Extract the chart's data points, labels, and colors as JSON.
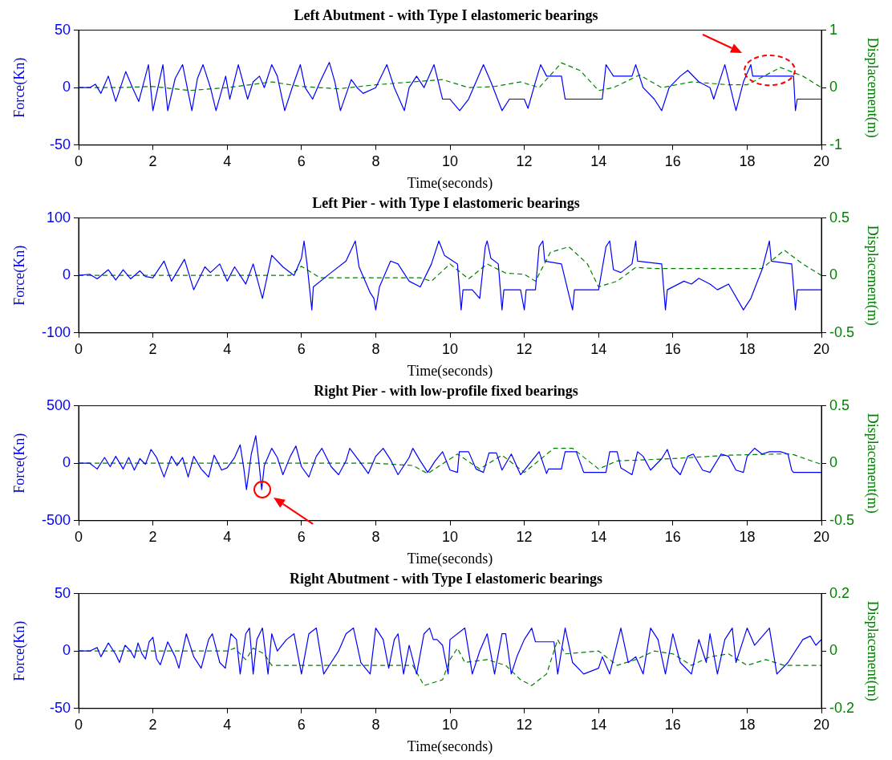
{
  "chart_data": [
    {
      "type": "line",
      "title": "Left Abutment - with Type I elastomeric bearings",
      "xlabel": "Time(seconds)",
      "ylabel": "Force(Kn)",
      "y2label": "Displacement(m)",
      "xlim": [
        0,
        20
      ],
      "xticks": [
        0,
        2,
        4,
        6,
        8,
        10,
        12,
        14,
        16,
        18,
        20
      ],
      "ylim": [
        -50,
        50
      ],
      "yticks": [
        -50,
        0,
        50
      ],
      "y2lim": [
        -1,
        1
      ],
      "y2ticks": [
        -1,
        0,
        1
      ],
      "marker": "none",
      "series": [
        {
          "color": "#0000ff",
          "line_style": "solid",
          "x": [
            0,
            0.3,
            0.45,
            0.6,
            0.8,
            1.0,
            1.27,
            1.45,
            1.62,
            1.88,
            2.0,
            2.27,
            2.4,
            2.6,
            2.8,
            3.05,
            3.2,
            3.35,
            3.55,
            3.7,
            3.96,
            4.07,
            4.3,
            4.55,
            4.7,
            4.87,
            5.0,
            5.2,
            5.35,
            5.55,
            5.75,
            5.97,
            6.1,
            6.3,
            6.5,
            6.75,
            6.9,
            7.05,
            7.34,
            7.5,
            7.66,
            8.0,
            8.3,
            8.5,
            8.77,
            8.9,
            9.1,
            9.3,
            9.57,
            9.8,
            10.0,
            10.26,
            10.5,
            10.9,
            11.1,
            11.4,
            11.6,
            12.0,
            12.1,
            12.3,
            12.44,
            12.6,
            13.0,
            13.1,
            14.1,
            14.2,
            14.4,
            14.9,
            15.0,
            15.2,
            15.5,
            15.7,
            15.9,
            16.2,
            16.4,
            16.7,
            17.0,
            17.1,
            17.3,
            17.4,
            17.55,
            17.7,
            17.9,
            18.1,
            18.15,
            19.25,
            19.3,
            19.35,
            20
          ],
          "values": [
            0,
            0,
            3,
            -5,
            10,
            -12,
            14,
            0,
            -12,
            20,
            -20,
            20,
            -20,
            8,
            20,
            -20,
            8,
            20,
            0,
            -20,
            10,
            -10,
            20,
            -10,
            5,
            10,
            0,
            20,
            10,
            -20,
            0,
            20,
            0,
            -10,
            5,
            22,
            5,
            -20,
            7,
            0,
            -5,
            0,
            20,
            0,
            -20,
            0,
            10,
            0,
            20,
            -10,
            -10,
            -20,
            -10,
            20,
            5,
            -20,
            -10,
            -10,
            -18,
            5,
            20,
            10,
            10,
            -10,
            -10,
            20,
            10,
            10,
            20,
            0,
            -10,
            -20,
            0,
            10,
            15,
            5,
            0,
            -10,
            10,
            20,
            0,
            -20,
            5,
            20,
            10,
            10,
            -20,
            -10,
            -10
          ]
        },
        {
          "color": "#008000",
          "line_style": "dashed",
          "axis": "y2",
          "x": [
            0,
            1,
            2,
            3,
            4,
            5.2,
            6,
            7,
            8,
            9,
            9.8,
            10.5,
            11.2,
            11.9,
            12.4,
            13.0,
            13.5,
            14.0,
            14.4,
            15.1,
            15.7,
            16.5,
            17.5,
            18,
            18.9,
            19.5,
            20
          ],
          "values": [
            0,
            0,
            0.02,
            -0.05,
            0,
            0.1,
            0.02,
            -0.02,
            0.05,
            0.1,
            0.14,
            0,
            0.02,
            0.1,
            0,
            0.43,
            0.3,
            -0.05,
            0,
            0.22,
            0,
            0.1,
            0.05,
            0.05,
            0.35,
            0.2,
            0
          ]
        }
      ]
    },
    {
      "type": "line",
      "title": "Left Pier - with Type I elastomeric bearings",
      "xlabel": "Time(seconds)",
      "ylabel": "Force(Kn)",
      "y2label": "Displacement(m)",
      "xlim": [
        0,
        20
      ],
      "xticks": [
        0,
        2,
        4,
        6,
        8,
        10,
        12,
        14,
        16,
        18,
        20
      ],
      "ylim": [
        -100,
        100
      ],
      "yticks": [
        -100,
        0,
        100
      ],
      "y2lim": [
        -0.5,
        0.5
      ],
      "y2ticks": [
        -0.5,
        0,
        0.5
      ],
      "marker": "none",
      "series": [
        {
          "color": "#0000ff",
          "line_style": "solid",
          "x": [
            0,
            0.3,
            0.5,
            0.8,
            1.0,
            1.2,
            1.4,
            1.65,
            1.8,
            2.0,
            2.3,
            2.5,
            2.85,
            3.1,
            3.4,
            3.55,
            3.8,
            4.0,
            4.2,
            4.5,
            4.7,
            4.95,
            5.2,
            5.5,
            5.8,
            6.0,
            6.07,
            6.15,
            6.28,
            6.32,
            6.8,
            7.2,
            7.45,
            7.55,
            7.85,
            7.95,
            8.0,
            8.1,
            8.4,
            8.6,
            8.9,
            9.2,
            9.5,
            9.7,
            9.85,
            10.2,
            10.3,
            10.35,
            10.6,
            10.8,
            10.95,
            11.0,
            11.1,
            11.3,
            11.4,
            11.45,
            11.9,
            12.0,
            12.05,
            12.3,
            12.4,
            12.5,
            12.55,
            13.0,
            13.3,
            13.35,
            14.0,
            14.2,
            14.3,
            14.4,
            14.6,
            14.9,
            15.0,
            15.05,
            15.7,
            15.8,
            15.85,
            16.3,
            16.5,
            16.7,
            17.0,
            17.2,
            17.5,
            17.9,
            18.1,
            18.4,
            18.6,
            18.65,
            19.2,
            19.3,
            19.35,
            20
          ],
          "values": [
            0,
            2,
            -6,
            10,
            -8,
            10,
            -6,
            8,
            -2,
            -4,
            25,
            -10,
            28,
            -25,
            15,
            5,
            20,
            -10,
            15,
            -15,
            20,
            -40,
            35,
            15,
            0,
            30,
            60,
            20,
            -60,
            -20,
            5,
            25,
            60,
            15,
            -30,
            -40,
            -60,
            -20,
            25,
            20,
            -10,
            -20,
            20,
            60,
            35,
            20,
            -60,
            -25,
            -25,
            -40,
            50,
            60,
            30,
            20,
            -60,
            -25,
            -25,
            -60,
            -25,
            -25,
            50,
            60,
            25,
            20,
            -60,
            -25,
            -25,
            50,
            60,
            10,
            5,
            20,
            60,
            25,
            20,
            -60,
            -25,
            -10,
            -15,
            -5,
            -15,
            -25,
            -15,
            -60,
            -40,
            10,
            60,
            25,
            20,
            -60,
            -25,
            -25
          ]
        },
        {
          "color": "#008000",
          "line_style": "dashed",
          "axis": "y2",
          "x": [
            0,
            5.7,
            6.0,
            6.5,
            8.0,
            9.2,
            9.5,
            10.0,
            10.5,
            11.0,
            11.5,
            12.0,
            12.3,
            12.7,
            13.2,
            13.7,
            14.0,
            14.5,
            15.0,
            15.5,
            18.4,
            19.0,
            19.5,
            20
          ],
          "values": [
            0,
            0,
            0.08,
            -0.02,
            -0.02,
            -0.02,
            -0.05,
            0.1,
            -0.03,
            0.1,
            0.02,
            0.01,
            -0.05,
            0.2,
            0.25,
            0.1,
            -0.1,
            -0.05,
            0.07,
            0.06,
            0.06,
            0.22,
            0.1,
            0
          ]
        }
      ]
    },
    {
      "type": "line",
      "title": "Right Pier - with low-profile fixed bearings",
      "xlabel": "Time(seconds)",
      "ylabel": "Force(Kn)",
      "y2label": "Displacement(m)",
      "xlim": [
        0,
        20
      ],
      "xticks": [
        0,
        2,
        4,
        6,
        8,
        10,
        12,
        14,
        16,
        18,
        20
      ],
      "ylim": [
        -500,
        500
      ],
      "yticks": [
        -500,
        0,
        500
      ],
      "y2lim": [
        -0.5,
        0.5
      ],
      "y2ticks": [
        -0.5,
        0,
        0.5
      ],
      "marker": "none",
      "series": [
        {
          "color": "#0000ff",
          "line_style": "solid",
          "x": [
            0,
            0.3,
            0.5,
            0.7,
            0.85,
            1.0,
            1.2,
            1.35,
            1.5,
            1.65,
            1.8,
            1.95,
            2.1,
            2.3,
            2.5,
            2.65,
            2.8,
            2.95,
            3.1,
            3.3,
            3.5,
            3.65,
            3.85,
            4.0,
            4.2,
            4.35,
            4.45,
            4.52,
            4.65,
            4.77,
            4.85,
            4.93,
            5.0,
            5.2,
            5.35,
            5.5,
            5.7,
            5.85,
            6.0,
            6.2,
            6.4,
            6.55,
            6.8,
            7.0,
            7.2,
            7.3,
            7.6,
            7.8,
            8.0,
            8.2,
            8.4,
            8.6,
            8.9,
            9.0,
            9.2,
            9.4,
            9.6,
            9.8,
            10.0,
            10.2,
            10.25,
            10.5,
            10.7,
            10.9,
            11.05,
            11.25,
            11.4,
            11.65,
            11.9,
            12.1,
            12.3,
            12.4,
            12.6,
            12.65,
            13.0,
            13.1,
            13.4,
            13.6,
            14.0,
            14.2,
            14.3,
            14.5,
            14.6,
            14.9,
            15.05,
            15.2,
            15.4,
            15.7,
            15.85,
            16.0,
            16.2,
            16.4,
            16.55,
            16.8,
            17.0,
            17.3,
            17.5,
            17.7,
            17.9,
            18.0,
            18.2,
            18.4,
            18.6,
            18.9,
            19.1,
            19.2,
            19.25,
            20
          ],
          "values": [
            0,
            0,
            -50,
            50,
            -30,
            60,
            -50,
            50,
            -60,
            40,
            -10,
            120,
            50,
            -120,
            60,
            -20,
            50,
            -120,
            60,
            -50,
            -120,
            70,
            -60,
            -40,
            50,
            160,
            -50,
            -230,
            80,
            240,
            20,
            -230,
            -20,
            130,
            50,
            -100,
            60,
            150,
            -30,
            -120,
            60,
            130,
            -30,
            -100,
            20,
            130,
            0,
            -90,
            60,
            130,
            30,
            -100,
            50,
            130,
            20,
            -80,
            20,
            100,
            -60,
            -80,
            100,
            100,
            -50,
            -80,
            90,
            90,
            -60,
            80,
            -100,
            -20,
            60,
            100,
            -90,
            -50,
            -50,
            100,
            100,
            -80,
            -80,
            -80,
            100,
            100,
            -40,
            -100,
            100,
            60,
            -60,
            40,
            120,
            -30,
            -100,
            60,
            80,
            -60,
            -80,
            80,
            60,
            -60,
            -80,
            60,
            130,
            80,
            100,
            100,
            80,
            -60,
            -80,
            -80
          ]
        },
        {
          "color": "#008000",
          "line_style": "dashed",
          "axis": "y2",
          "x": [
            0,
            8,
            9,
            9.4,
            10.2,
            10.8,
            11.4,
            12.0,
            12.8,
            13.3,
            14.0,
            14.5,
            16,
            17.5,
            18.8,
            19.2,
            20
          ],
          "values": [
            0,
            0,
            -0.02,
            -0.09,
            0.08,
            -0.05,
            0.07,
            -0.08,
            0.13,
            0.13,
            -0.05,
            0.02,
            0.04,
            0.07,
            0.08,
            0.08,
            -0.01
          ]
        }
      ]
    },
    {
      "type": "line",
      "title": "Right Abutment - with Type I elastomeric bearings",
      "xlabel": "Time(seconds)",
      "ylabel": "Force(Kn)",
      "y2label": "Displacement(m)",
      "xlim": [
        0,
        20
      ],
      "xticks": [
        0,
        2,
        4,
        6,
        8,
        10,
        12,
        14,
        16,
        18,
        20
      ],
      "ylim": [
        -50,
        50
      ],
      "yticks": [
        -50,
        0,
        50
      ],
      "y2lim": [
        -0.2,
        0.2
      ],
      "y2ticks": [
        -0.2,
        0,
        0.2
      ],
      "marker": "none",
      "series": [
        {
          "color": "#0000ff",
          "line_style": "solid",
          "x": [
            0,
            0.3,
            0.5,
            0.6,
            0.8,
            1.0,
            1.1,
            1.25,
            1.4,
            1.5,
            1.6,
            1.7,
            1.8,
            1.9,
            2.0,
            2.1,
            2.2,
            2.4,
            2.6,
            2.7,
            2.9,
            3.1,
            3.3,
            3.5,
            3.6,
            3.8,
            3.95,
            4.1,
            4.25,
            4.35,
            4.5,
            4.6,
            4.7,
            4.8,
            4.95,
            5.1,
            5.2,
            5.35,
            5.6,
            5.8,
            6.0,
            6.2,
            6.4,
            6.6,
            6.8,
            7.0,
            7.2,
            7.4,
            7.6,
            7.85,
            8.0,
            8.2,
            8.35,
            8.5,
            8.6,
            8.75,
            8.9,
            9.1,
            9.3,
            9.45,
            9.55,
            9.65,
            9.8,
            9.95,
            10.0,
            10.4,
            10.6,
            10.8,
            11.0,
            11.2,
            11.4,
            11.5,
            11.65,
            11.8,
            12.0,
            12.2,
            12.3,
            12.8,
            12.9,
            13.1,
            13.3,
            13.6,
            14.0,
            14.1,
            14.3,
            14.6,
            14.8,
            15.0,
            15.2,
            15.4,
            15.6,
            15.8,
            16.0,
            16.2,
            16.5,
            16.7,
            16.9,
            17.0,
            17.2,
            17.4,
            17.6,
            17.7,
            17.9,
            18.0,
            18.2,
            18.6,
            18.75,
            18.8,
            19.1,
            19.5,
            19.7,
            19.85,
            20
          ],
          "values": [
            0,
            0,
            3,
            -5,
            7,
            -3,
            -10,
            5,
            0,
            -6,
            7,
            -2,
            -7,
            8,
            12,
            -7,
            -12,
            8,
            -5,
            -15,
            15,
            -5,
            -15,
            10,
            15,
            -10,
            -15,
            15,
            10,
            -20,
            15,
            20,
            -20,
            10,
            20,
            -20,
            15,
            0,
            10,
            15,
            -20,
            15,
            20,
            -20,
            -10,
            0,
            15,
            20,
            -10,
            -20,
            20,
            10,
            -15,
            10,
            15,
            -20,
            5,
            -20,
            15,
            20,
            10,
            10,
            5,
            -20,
            10,
            20,
            -20,
            0,
            15,
            -20,
            15,
            15,
            -20,
            -5,
            10,
            20,
            8,
            8,
            -20,
            20,
            -10,
            -20,
            -15,
            -5,
            -20,
            20,
            -10,
            -5,
            -20,
            20,
            10,
            -20,
            15,
            -10,
            -20,
            10,
            -10,
            15,
            -20,
            10,
            20,
            -10,
            10,
            20,
            5,
            20,
            -10,
            -20,
            -10,
            10,
            13,
            5,
            10
          ]
        },
        {
          "color": "#008000",
          "line_style": "dashed",
          "axis": "y2",
          "x": [
            0,
            4.0,
            4.2,
            4.5,
            4.7,
            5.0,
            5.2,
            9.0,
            9.3,
            9.8,
            10.0,
            10.2,
            10.4,
            11,
            11.5,
            11.9,
            12.2,
            12.6,
            12.9,
            13.1,
            14.0,
            14.5,
            15.0,
            15.5,
            16,
            16.5,
            17,
            17.5,
            18,
            18.5,
            19,
            20
          ],
          "values": [
            0,
            0,
            0.01,
            -0.03,
            0.01,
            -0.01,
            -0.05,
            -0.05,
            -0.12,
            -0.1,
            -0.03,
            0.01,
            -0.04,
            -0.03,
            -0.05,
            -0.1,
            -0.12,
            -0.08,
            0.04,
            -0.01,
            0,
            -0.05,
            -0.03,
            0,
            -0.01,
            -0.05,
            -0.02,
            -0.01,
            -0.05,
            -0.03,
            -0.05,
            -0.05
          ]
        }
      ]
    }
  ]
}
